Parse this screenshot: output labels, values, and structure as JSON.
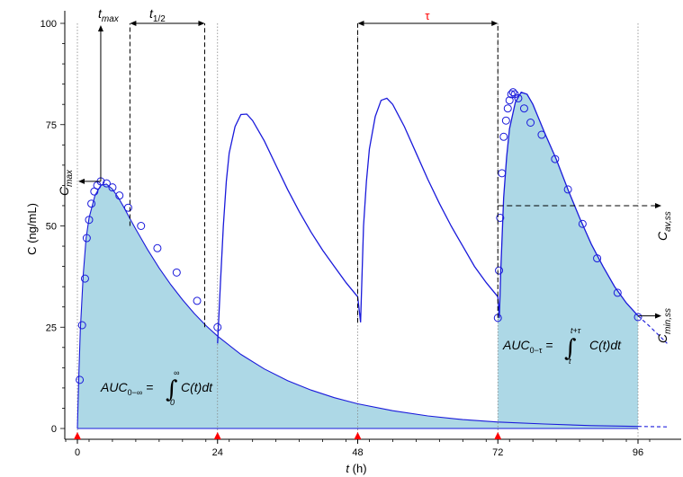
{
  "chart_data": {
    "type": "line",
    "xlabel_var": "t",
    "xlabel_unit": "(h)",
    "ylabel": "C (ng/mL)",
    "xlim": [
      -2,
      101
    ],
    "ylim": [
      -2,
      100
    ],
    "x_ticks": [
      0,
      24,
      48,
      72,
      96
    ],
    "y_ticks": [
      0,
      25,
      50,
      75,
      100
    ],
    "dose_times": [
      0,
      24,
      48,
      72
    ],
    "series": [
      {
        "role": "single-dose-fitted-curve",
        "x": [
          0,
          0.25,
          0.5,
          1,
          1.5,
          2,
          3,
          4,
          5,
          6,
          7,
          8,
          9,
          10,
          12,
          14,
          16,
          18,
          20,
          22,
          24,
          28,
          32,
          36,
          40,
          44,
          48,
          54,
          60,
          66,
          72,
          80,
          88,
          96
        ],
        "values": [
          0,
          13,
          24,
          38,
          47,
          52,
          57.5,
          60,
          60.3,
          59.1,
          57,
          54.5,
          51.8,
          49.2,
          44.2,
          39.6,
          35.5,
          31.8,
          28.4,
          25.4,
          22.8,
          18.3,
          14.7,
          11.8,
          9.5,
          7.6,
          6.1,
          4.4,
          3.1,
          2.2,
          1.6,
          1.1,
          0.7,
          0.5
        ]
      },
      {
        "role": "single-dose-extrapolation",
        "x": [
          96,
          101
        ],
        "values": [
          0.5,
          0.4
        ]
      },
      {
        "role": "multiple-dose-curve",
        "x": [
          24,
          24.5,
          25,
          25.5,
          26,
          27,
          28,
          29,
          30,
          32,
          34,
          36,
          38,
          40,
          42,
          44,
          46,
          48,
          48.5,
          49,
          49.5,
          50,
          51,
          52,
          53,
          54,
          56,
          58,
          60,
          62,
          64,
          66,
          68,
          70,
          72,
          72.25,
          72.5,
          73,
          73.5,
          74,
          75,
          76,
          77,
          78,
          80,
          82,
          84,
          86,
          88,
          90,
          92,
          94,
          96
        ],
        "values": [
          21,
          36,
          50,
          61,
          68,
          74.5,
          77.5,
          77.6,
          76,
          71,
          65,
          59,
          53.5,
          48.5,
          44,
          40,
          36,
          32.5,
          26.2,
          50,
          61,
          69,
          77,
          81,
          81.5,
          80,
          74.5,
          68,
          61.5,
          55.5,
          50,
          45,
          40,
          36,
          32.5,
          27.3,
          39,
          57,
          67,
          74,
          80.5,
          83,
          82.5,
          80,
          73,
          66.5,
          59,
          52,
          45.5,
          40,
          35,
          31,
          27.8
        ]
      },
      {
        "role": "multiple-dose-extrapolation",
        "x": [
          96,
          98,
          101
        ],
        "values": [
          27.8,
          25.2,
          21
        ]
      }
    ],
    "observations": [
      {
        "x": [
          0.4,
          0.8,
          1.3,
          1.6,
          2.0,
          2.4,
          2.9,
          3.4,
          4.0,
          5.0,
          6.0,
          7.2,
          8.7,
          10.9,
          13.7,
          17.0,
          20.5,
          24.0
        ],
        "values": [
          12,
          25.5,
          37,
          47,
          51.5,
          55.5,
          58.5,
          60,
          61,
          60.5,
          59.5,
          57.5,
          54.5,
          50,
          44.5,
          38.5,
          31.5,
          25
        ]
      },
      {
        "x": [
          72.0,
          72.2,
          72.4,
          72.7,
          73.0,
          73.4,
          73.7,
          74.0,
          74.3,
          74.6,
          74.9,
          75.5,
          76.5,
          77.6,
          79.5,
          81.8,
          84.0,
          86.5,
          89.0,
          92.5,
          96.0
        ],
        "values": [
          27.3,
          39,
          52,
          63,
          72,
          76,
          79,
          81,
          82.5,
          83,
          82.5,
          81.5,
          79,
          75.5,
          72.5,
          66.5,
          59,
          50.5,
          42,
          33.5,
          27.5
        ]
      }
    ],
    "steady_state_average": 55,
    "annotations": {
      "tmax": "t",
      "tmax_sub": "max",
      "thalf": "t",
      "thalf_sub": "1/2",
      "tau": "τ",
      "cmax": "C",
      "cmax_sub": "max",
      "cav": "C",
      "cav_sub": "av,ss",
      "cmin": "C",
      "cmin_sub": "min,ss",
      "auc_inf_lhs": "AUC",
      "auc_inf_sub": "0−∞",
      "auc_inf_upper": "∞",
      "auc_inf_lower": "0",
      "auc_inf_rhs": "C(t)dt",
      "auc_tau_lhs": "AUC",
      "auc_tau_sub": "0−τ",
      "auc_tau_upper": "t+τ",
      "auc_tau_lower": "t",
      "auc_tau_rhs": "C(t)dt"
    },
    "colors": {
      "curve": "#1a1adb",
      "fill": "#add8e6",
      "dose_marker": "#ff0000",
      "tau_label": "#ff0000"
    }
  }
}
